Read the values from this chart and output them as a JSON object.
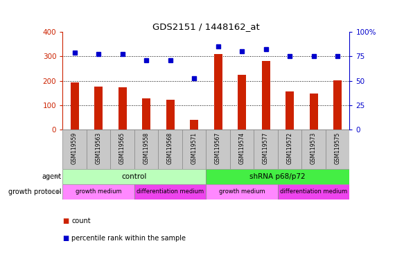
{
  "title": "GDS2151 / 1448162_at",
  "samples": [
    "GSM119559",
    "GSM119563",
    "GSM119565",
    "GSM119558",
    "GSM119568",
    "GSM119571",
    "GSM119567",
    "GSM119574",
    "GSM119577",
    "GSM119572",
    "GSM119573",
    "GSM119575"
  ],
  "counts": [
    192,
    175,
    173,
    128,
    122,
    40,
    310,
    225,
    282,
    157,
    149,
    202
  ],
  "percentiles_left_scale": [
    315,
    310,
    310,
    285,
    285,
    210,
    340,
    320,
    330,
    300,
    300,
    300
  ],
  "right_yticks": [
    0,
    25,
    50,
    75,
    100
  ],
  "right_yticklabels": [
    "0",
    "25",
    "50",
    "75",
    "100%"
  ],
  "bar_color": "#cc2200",
  "dot_color": "#0000cc",
  "left_ylim": [
    0,
    400
  ],
  "left_yticks": [
    0,
    100,
    200,
    300,
    400
  ],
  "right_ylim": [
    0,
    100
  ],
  "agent_groups": [
    {
      "label": "control",
      "start": 0,
      "end": 6,
      "color": "#bbffbb"
    },
    {
      "label": "shRNA p68/p72",
      "start": 6,
      "end": 12,
      "color": "#44ee44"
    }
  ],
  "growth_protocol_groups": [
    {
      "label": "growth medium",
      "start": 0,
      "end": 3,
      "color": "#ff88ff"
    },
    {
      "label": "differentiation medium",
      "start": 3,
      "end": 6,
      "color": "#ee44ee"
    },
    {
      "label": "growth medium",
      "start": 6,
      "end": 9,
      "color": "#ff88ff"
    },
    {
      "label": "differentiation medium",
      "start": 9,
      "end": 12,
      "color": "#ee44ee"
    }
  ],
  "agent_label": "agent",
  "growth_label": "growth protocol",
  "legend_count_label": "count",
  "legend_pct_label": "percentile rank within the sample",
  "left_axis_color": "#cc2200",
  "right_axis_color": "#0000cc",
  "sample_bg_color": "#c8c8c8",
  "sample_border_color": "#888888",
  "bar_width": 0.35
}
